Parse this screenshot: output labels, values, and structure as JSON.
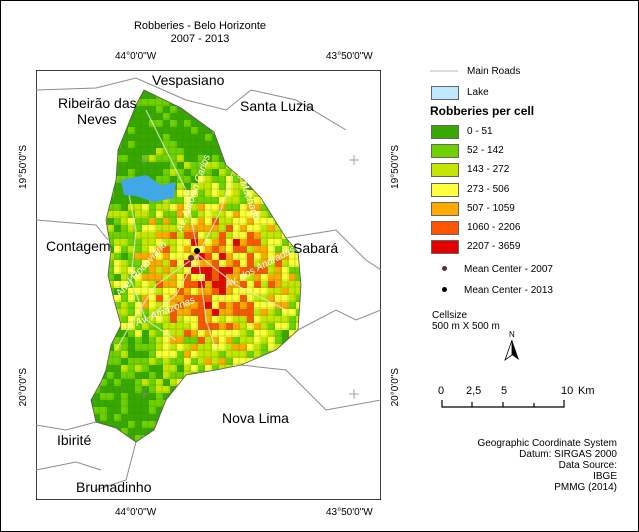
{
  "title": {
    "line1": "Robberies - Belo Horizonte",
    "line2": "2007 - 2013"
  },
  "coords": {
    "top_left": "44°0'0\"W",
    "top_right": "43°50'0\"W",
    "bottom_left": "44°0'0\"W",
    "bottom_right": "43°50'0\"W",
    "left_upper": "19°50'0\"S",
    "left_lower": "20°0'0\"S",
    "right_upper": "19°50'0\"S",
    "right_lower": "20°0'0\"S"
  },
  "places": {
    "vespasiano": "Vespasiano",
    "ribeirao": "Ribeirão das",
    "ribeirao2": "Neves",
    "santa_luzia": "Santa Luzia",
    "contagem": "Contagem",
    "sabara": "Sabará",
    "nova_lima": "Nova Lima",
    "ibirite": "Ibirité",
    "brumadinho": "Brumadinho"
  },
  "roads": {
    "amazonas": "Av. Amazonas",
    "anel": "Anel Rodoviário",
    "antonio_carlos": "Av. Antônio Carlos",
    "cristiano": "Cristiano Machado",
    "andradas": "Av. dos Andradas"
  },
  "legend": {
    "main_roads": "Main Roads",
    "lake": "Lake",
    "header": "Robberies per cell",
    "classes": [
      {
        "label": "0 - 51",
        "color": "#38a800"
      },
      {
        "label": "52 - 142",
        "color": "#6fd100"
      },
      {
        "label": "143 - 272",
        "color": "#c4e600"
      },
      {
        "label": "273 - 506",
        "color": "#ffff3c"
      },
      {
        "label": "507 - 1059",
        "color": "#ffaa00"
      },
      {
        "label": "1060 - 2206",
        "color": "#ff5500"
      },
      {
        "label": "2207 - 3659",
        "color": "#e60000"
      }
    ],
    "mean_2007": "Mean Center - 2007",
    "mean_2013": "Mean Center - 2013",
    "cellsize_label": "Cellsize",
    "cellsize_value": "500 m X 500 m"
  },
  "north": "N",
  "scale": {
    "ticks": [
      "0",
      "2,5",
      "5",
      "10"
    ],
    "unit": "Km"
  },
  "info": [
    "Geographic Coordinate System",
    "Datum: SIRGAS 2000",
    "Data Source:",
    "IBGE",
    "PMMG (2014)"
  ],
  "colors": {
    "lake": "#41a7e6",
    "lake_legend": "#bee8ff",
    "outside": "#ffffff",
    "roads": "#cfcfcf"
  }
}
